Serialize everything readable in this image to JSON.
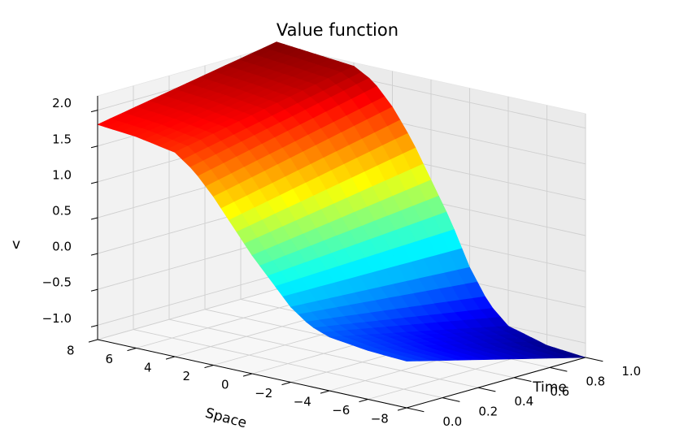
{
  "chart_data": {
    "type": "surface3d",
    "title": "Value function",
    "xlabel": "Space",
    "ylabel": "Time",
    "zlabel": "v",
    "colormap": "jet",
    "grid": true,
    "x_ticks": [
      8,
      6,
      4,
      2,
      0,
      -2,
      -4,
      -6,
      -8
    ],
    "x_tick_labels": [
      "8",
      "6",
      "4",
      "2",
      "0",
      "−2",
      "−4",
      "−6",
      "−8"
    ],
    "y_ticks": [
      0.0,
      0.2,
      0.4,
      0.6,
      0.8,
      1.0
    ],
    "y_tick_labels": [
      "0.0",
      "0.2",
      "0.4",
      "0.6",
      "0.8",
      "1.0"
    ],
    "z_ticks": [
      -1.0,
      -0.5,
      0.0,
      0.5,
      1.0,
      1.5,
      2.0
    ],
    "z_tick_labels": [
      "−1.0",
      "−0.5",
      "0.0",
      "0.5",
      "1.0",
      "1.5",
      "2.0"
    ],
    "xlim": [
      -8,
      8
    ],
    "ylim": [
      0,
      1
    ],
    "zlim": [
      -1.2,
      2.2
    ],
    "surface_profile": {
      "space": [
        -8,
        -6,
        -4,
        -3,
        -2,
        -1,
        0,
        1,
        2,
        3,
        4,
        6,
        8
      ],
      "v_at_time_0": [
        -0.55,
        -0.52,
        -0.45,
        -0.35,
        -0.15,
        0.15,
        0.45,
        0.8,
        1.15,
        1.45,
        1.65,
        1.75,
        1.8
      ],
      "v_at_time_1": [
        -1.2,
        -1.15,
        -1.0,
        -0.75,
        -0.3,
        0.3,
        0.8,
        1.3,
        1.7,
        2.0,
        2.15,
        2.2,
        2.25
      ]
    }
  }
}
